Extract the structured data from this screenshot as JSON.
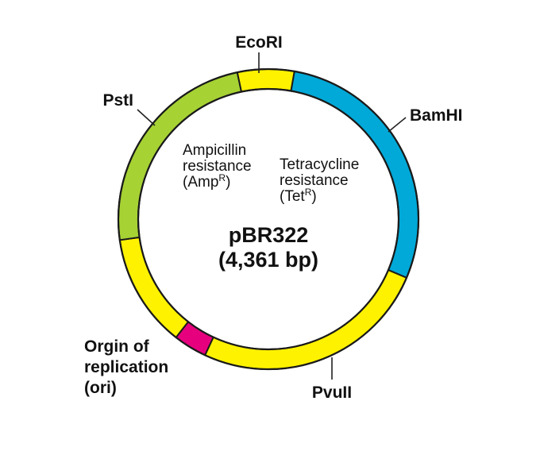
{
  "plasmid": {
    "name": "pBR322",
    "size": "(4,361 bp)",
    "colors": {
      "yellow": "#fff200",
      "blue": "#00a9d8",
      "green": "#a6d234",
      "magenta": "#e6007e",
      "outline": "#1a1a1a"
    }
  },
  "segments": [
    {
      "name": "ecori-region",
      "color": "#fff200"
    },
    {
      "name": "tetracycline-resistance-region",
      "color": "#00a9d8"
    },
    {
      "name": "pvuii-region",
      "color": "#fff200"
    },
    {
      "name": "ori-region",
      "color": "#e6007e"
    },
    {
      "name": "left-region",
      "color": "#fff200"
    },
    {
      "name": "ampicillin-resistance-region",
      "color": "#a6d234"
    }
  ],
  "sites": {
    "ecori": "EcoRI",
    "bamhi": "BamHI",
    "psti": "PstI",
    "pvuii": "PvuII",
    "ori_line1": "Orgin of",
    "ori_line2": "replication",
    "ori_line3": "(ori)"
  },
  "genes": {
    "amp_line1": "Ampicillin",
    "amp_line2": "resistance",
    "amp_line3_prefix": "(Amp",
    "amp_sup": "R",
    "amp_line3_suffix": ")",
    "tet_line1": "Tetracycline",
    "tet_line2": "resistance",
    "tet_line3_prefix": "(Tet",
    "tet_sup": "R",
    "tet_line3_suffix": ")"
  }
}
